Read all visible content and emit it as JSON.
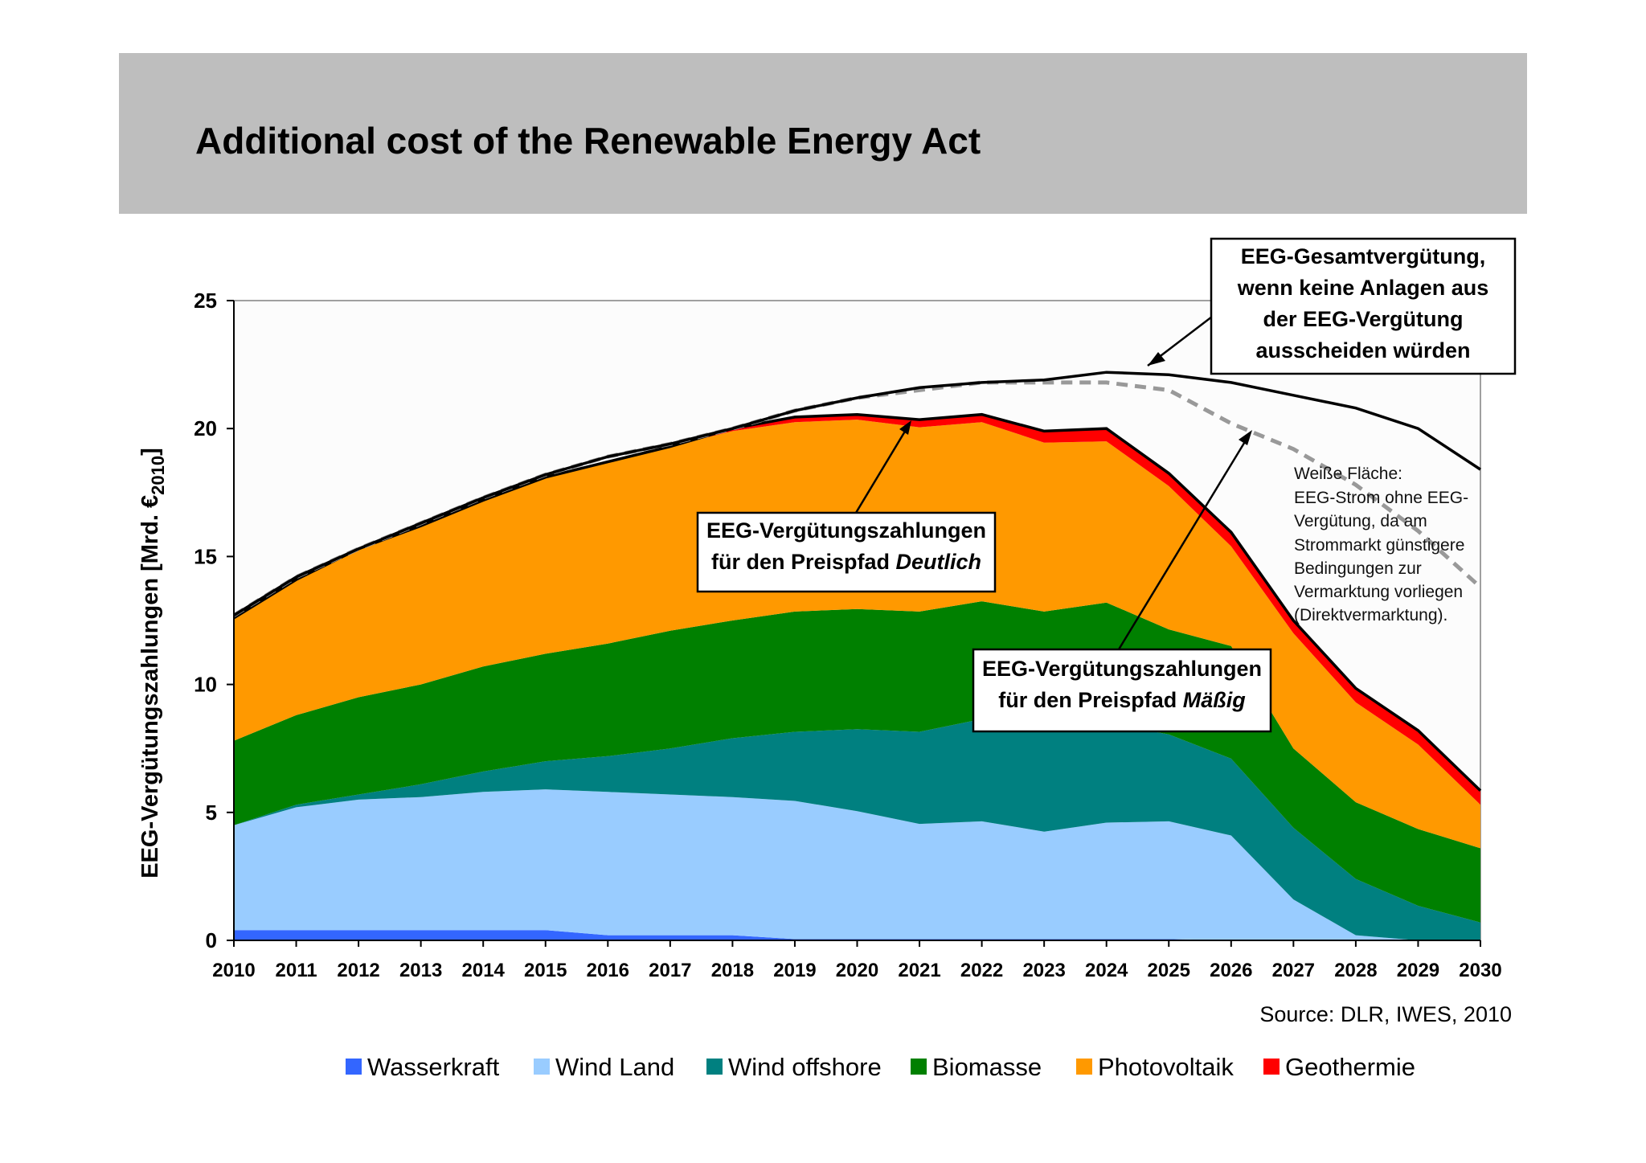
{
  "slide": {
    "title": "Additional cost of the Renewable Energy Act"
  },
  "chart_data": {
    "type": "area",
    "stacked": true,
    "ylabel": "EEG-Vergütungszahlungen [Mrd. €2010]",
    "ylabel_main": "EEG-Vergütungszahlungen [Mrd. €",
    "ylabel_sub": "2010",
    "ylabel_close": "]",
    "ylim": [
      0,
      25
    ],
    "yticks": [
      0,
      5,
      10,
      15,
      20,
      25
    ],
    "grid": false,
    "legend_position": "bottom",
    "x": [
      "2010",
      "2011",
      "2012",
      "2013",
      "2014",
      "2015",
      "2016",
      "2017",
      "2018",
      "2019",
      "2020",
      "2021",
      "2022",
      "2023",
      "2024",
      "2025",
      "2026",
      "2027",
      "2028",
      "2029",
      "2030"
    ],
    "series": [
      {
        "name": "Wasserkraft",
        "color": "#3366ff",
        "values": [
          0.4,
          0.4,
          0.4,
          0.4,
          0.4,
          0.4,
          0.2,
          0.2,
          0.2,
          0.05,
          0.05,
          0.05,
          0.05,
          0.05,
          0.05,
          0.05,
          0,
          0,
          0,
          0,
          0
        ]
      },
      {
        "name": "Wind Land",
        "color": "#99ccff",
        "values": [
          4.1,
          4.8,
          5.1,
          5.2,
          5.4,
          5.5,
          5.6,
          5.5,
          5.4,
          5.4,
          5.0,
          4.5,
          4.6,
          4.2,
          4.55,
          4.6,
          4.1,
          1.6,
          0.2,
          0,
          0
        ]
      },
      {
        "name": "Wind offshore",
        "color": "#008080",
        "values": [
          0,
          0.1,
          0.2,
          0.5,
          0.8,
          1.1,
          1.4,
          1.8,
          2.3,
          2.7,
          3.2,
          3.6,
          4.0,
          4.3,
          3.9,
          3.4,
          3.0,
          2.8,
          2.2,
          1.35,
          0.7
        ]
      },
      {
        "name": "Biomasse",
        "color": "#008000",
        "values": [
          3.3,
          3.5,
          3.8,
          3.9,
          4.1,
          4.2,
          4.4,
          4.6,
          4.6,
          4.7,
          4.7,
          4.7,
          4.6,
          4.3,
          4.7,
          4.1,
          4.4,
          3.1,
          3.0,
          3.0,
          2.9
        ]
      },
      {
        "name": "Photovoltaik",
        "color": "#ff9900",
        "values": [
          4.8,
          5.3,
          5.8,
          6.2,
          6.5,
          6.9,
          7.1,
          7.2,
          7.4,
          7.4,
          7.4,
          7.2,
          7.0,
          6.6,
          6.3,
          5.6,
          3.9,
          4.5,
          3.9,
          3.3,
          1.7
        ]
      },
      {
        "name": "Geothermie",
        "color": "#ff0000",
        "values": [
          0,
          0,
          0,
          0,
          0,
          0,
          0,
          0,
          0.1,
          0.2,
          0.2,
          0.3,
          0.3,
          0.45,
          0.5,
          0.5,
          0.55,
          0.5,
          0.55,
          0.55,
          0.55
        ]
      }
    ],
    "lines": [
      {
        "label": "EEG-Gesamtvergütung",
        "style": "solid",
        "color": "#000000",
        "values": [
          12.7,
          14.2,
          15.3,
          16.3,
          17.3,
          18.2,
          18.9,
          19.4,
          20.0,
          20.7,
          21.2,
          21.6,
          21.8,
          21.9,
          22.2,
          22.1,
          21.8,
          21.3,
          20.8,
          20.0,
          18.4
        ]
      },
      {
        "label": "Preispfad Deutlich",
        "style": "dashed",
        "color": "#999999",
        "values": [
          12.7,
          14.2,
          15.3,
          16.3,
          17.3,
          18.2,
          18.9,
          19.4,
          20.0,
          20.7,
          21.2,
          21.5,
          21.8,
          21.8,
          21.8,
          21.5,
          20.2,
          19.2,
          17.8,
          16.0,
          13.8
        ]
      }
    ],
    "annotations": {
      "top_right": {
        "lines": [
          "EEG-Gesamtvergütung,",
          "wenn keine Anlagen aus",
          "der EEG-Vergütung",
          "ausscheiden würden"
        ]
      },
      "deutlich": {
        "line1": "EEG-Vergütungszahlungen",
        "line2_prefix": "für den Preispfad ",
        "line2_italic": "Deutlich"
      },
      "maessig": {
        "line1": "EEG-Vergütungszahlungen",
        "line2_prefix": "für den Preispfad ",
        "line2_italic": "Mäßig"
      },
      "note": {
        "lines": [
          "Weiße Fläche:",
          "EEG-Strom ohne EEG-",
          "Vergütung, da am",
          "Strommarkt günstigere",
          "Bedingungen zur",
          "Vermarktung vorliegen",
          "(Direktvermarktung)."
        ]
      }
    },
    "source": "Source: DLR, IWES, 2010"
  }
}
